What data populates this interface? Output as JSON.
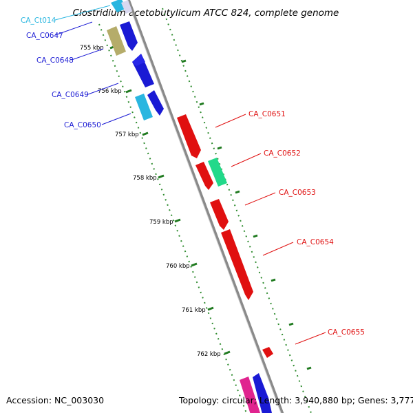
{
  "map": {
    "title": "Clostridium acetobutylicum ATCC 824, complete genome",
    "footer_left": "Accession: NC_003030",
    "footer_right": "Topology: circular; Length: 3,940,880 bp; Genes: 3,777"
  },
  "ticks": [
    "755 kbp",
    "756 kbp",
    "757 kbp",
    "758 kbp",
    "759 kbp",
    "760 kbp",
    "761 kbp",
    "762 kbp"
  ],
  "genes": [
    {
      "name": "CA_Ct014",
      "strand": "reverse",
      "color": "#29b6e0"
    },
    {
      "name": "CA_C0647",
      "strand": "reverse",
      "color": "#1a1ad4"
    },
    {
      "name": "CA_C0648",
      "strand": "reverse",
      "color": "#1a1ad4"
    },
    {
      "name": "CA_C0649",
      "strand": "reverse",
      "color": "#1a1ad4"
    },
    {
      "name": "CA_C0650",
      "strand": "reverse",
      "color": "#1a1ad4"
    },
    {
      "name": "CA_C0651",
      "strand": "forward",
      "color": "#e01010"
    },
    {
      "name": "CA_C0652",
      "strand": "forward",
      "color": "#e01010"
    },
    {
      "name": "CA_C0653",
      "strand": "forward",
      "color": "#e01010"
    },
    {
      "name": "CA_C0654",
      "strand": "forward",
      "color": "#e01010"
    },
    {
      "name": "CA_C0655",
      "strand": "forward",
      "color": "#e01010"
    }
  ],
  "colors": {
    "backbone": "#8a8a8a",
    "dotted_guide": "#2e8b2e",
    "reverse_gene": "#1a1ad4",
    "trna_gene": "#29b6e0",
    "forward_gene": "#e01010",
    "olive_feature": "#b5ac6a",
    "teal_feature": "#22d98a",
    "magenta_feature": "#e0248f"
  }
}
